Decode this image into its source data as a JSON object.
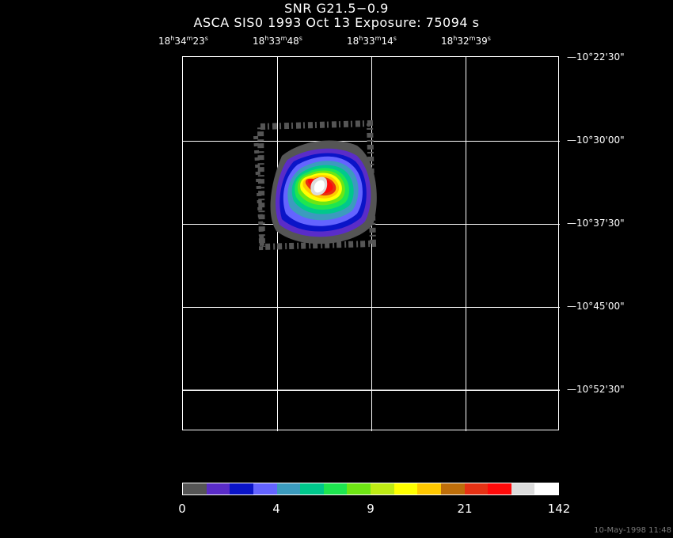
{
  "header": {
    "title": "SNR G21.5−0.9",
    "subtitle": "ASCA SIS0    1993 Oct 13    Exposure: 75094 s"
  },
  "axes": {
    "ra_ticks": [
      {
        "h": "18",
        "m": "34",
        "s": "23"
      },
      {
        "h": "18",
        "m": "33",
        "s": "48"
      },
      {
        "h": "18",
        "m": "33",
        "s": "14"
      },
      {
        "h": "18",
        "m": "32",
        "s": "39"
      }
    ],
    "dec_ticks": [
      "10°22'30\"",
      "10°30'00\"",
      "10°37'30\"",
      "10°45'00\"",
      "10°52'30\""
    ]
  },
  "colorbar": {
    "colors": [
      "#555555",
      "#5a2cc8",
      "#0a14c8",
      "#6464ff",
      "#3c9bbe",
      "#00c88c",
      "#1ee650",
      "#6ee614",
      "#beeb14",
      "#ffff00",
      "#ffc800",
      "#be6e0a",
      "#e63214",
      "#ff0a0a",
      "#dcdcdc",
      "#ffffff"
    ],
    "labels": [
      "0",
      "4",
      "9",
      "21",
      "142"
    ]
  },
  "footer": {
    "timestamp": "10-May-1998 11:48"
  }
}
